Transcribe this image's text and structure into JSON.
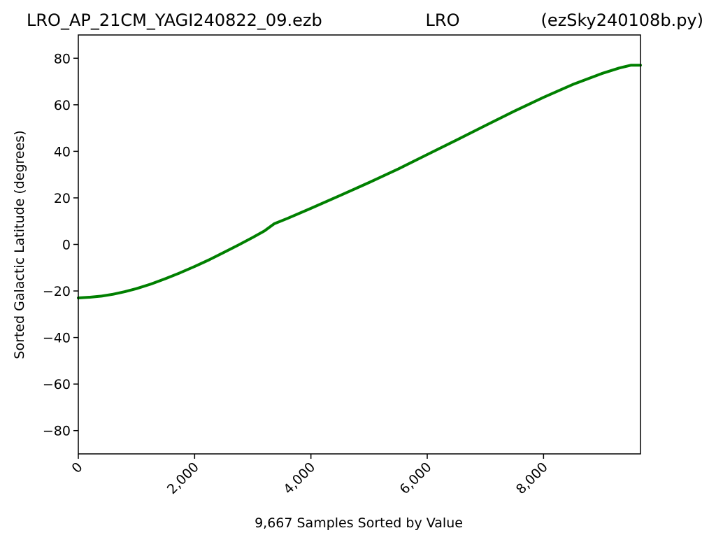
{
  "chart_data": {
    "type": "line",
    "title_left": "LRO_AP_21CM_YAGI240822_09.ezb",
    "title_center": "LRO",
    "title_right": "(ezSky240108b.py)",
    "xlabel": "9,667 Samples Sorted by Value",
    "ylabel": "Sorted Galactic Latitude (degrees)",
    "xlim": [
      0,
      9667
    ],
    "ylim": [
      -90,
      90
    ],
    "x_ticks": [
      0,
      2000,
      4000,
      6000,
      8000
    ],
    "x_tick_labels": [
      "0",
      "2,000",
      "4,000",
      "6,000",
      "8,000"
    ],
    "y_ticks": [
      80,
      60,
      40,
      20,
      0,
      -20,
      -40,
      -60,
      -80
    ],
    "y_tick_labels": [
      "80",
      "60",
      "40",
      "20",
      "0",
      "−20",
      "−40",
      "−60",
      "−80"
    ],
    "grid": false,
    "series": [
      {
        "color": "#008000",
        "x": [
          0,
          200,
          400,
          600,
          800,
          1000,
          1250,
          1500,
          1750,
          2000,
          2250,
          2500,
          2750,
          3000,
          3200,
          3370,
          3600,
          4000,
          4500,
          5000,
          5500,
          6000,
          6500,
          7000,
          7500,
          8000,
          8500,
          9000,
          9300,
          9500,
          9667
        ],
        "y": [
          -23,
          -22.7,
          -22.2,
          -21.4,
          -20.3,
          -19.0,
          -17.0,
          -14.7,
          -12.2,
          -9.5,
          -6.6,
          -3.5,
          -0.3,
          3.0,
          5.8,
          8.9,
          11.2,
          15.5,
          21.0,
          26.6,
          32.4,
          38.6,
          44.8,
          51.1,
          57.3,
          63.2,
          68.7,
          73.4,
          75.8,
          77.0,
          77.0
        ]
      }
    ]
  }
}
